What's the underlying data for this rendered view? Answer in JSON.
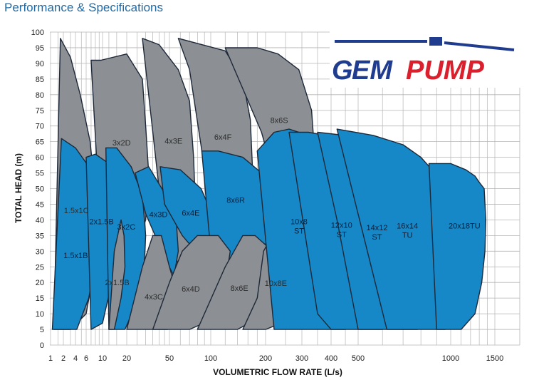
{
  "page": {
    "title": "Performance & Specifications"
  },
  "logo": {
    "prefix": "G",
    "brand_e": "EM",
    "brand_pump": "PUMP",
    "blue": "#1f3c8f",
    "red": "#d9202c"
  },
  "colors": {
    "gray_fill": "#8c8f93",
    "blue_fill": "#1688c7",
    "outline": "#1d2838",
    "grid": "#b5b5b5"
  },
  "chart_data": {
    "type": "area",
    "title": "",
    "xlabel": "VOLUMETRIC FLOW RATE (L/s)",
    "ylabel": "TOTAL HEAD (m)",
    "ylim": [
      0,
      100
    ],
    "y_ticks": [
      "0",
      "5",
      "10",
      "15",
      "20",
      "25",
      "30",
      "35",
      "40",
      "45",
      "50",
      "55",
      "60",
      "65",
      "70",
      "75",
      "80",
      "85",
      "90",
      "95",
      "100"
    ],
    "x_ticks": [
      "1",
      "2",
      "4",
      "6",
      "10",
      "20",
      "50",
      "100",
      "200",
      "300",
      "400",
      "500",
      "1000",
      "1500"
    ],
    "grid": true,
    "series": [
      {
        "name": "1.5x1C",
        "family": "gray",
        "q": [
          1.2,
          1.7,
          3,
          4.8,
          6.8,
          8.2,
          7.8,
          6,
          3,
          1.7
        ],
        "h": [
          5,
          98,
          92,
          80,
          65,
          45,
          25,
          10,
          5,
          5
        ]
      },
      {
        "name": "3x2D",
        "family": "gray",
        "q": [
          7,
          9.5,
          20,
          28,
          30,
          32,
          30,
          22,
          14,
          9,
          7
        ],
        "h": [
          91,
          91,
          93,
          85,
          70,
          55,
          40,
          28,
          22,
          45,
          91
        ]
      },
      {
        "name": "4x3E",
        "family": "gray",
        "q": [
          28,
          40,
          58,
          70,
          75,
          78,
          74,
          62,
          40,
          28
        ],
        "h": [
          98,
          96,
          88,
          78,
          60,
          40,
          25,
          20,
          50,
          98
        ]
      },
      {
        "name": "6x4F",
        "family": "gray",
        "q": [
          58,
          120,
          150,
          165,
          170,
          165,
          145,
          115,
          70,
          58
        ],
        "h": [
          98,
          94,
          85,
          72,
          55,
          35,
          20,
          20,
          88,
          98
        ]
      },
      {
        "name": "8x6S",
        "family": "gray",
        "q": [
          120,
          180,
          230,
          290,
          330,
          345,
          340,
          305,
          190,
          120
        ],
        "h": [
          95,
          95,
          93,
          88,
          75,
          55,
          35,
          20,
          68,
          95
        ]
      },
      {
        "name": "1.5x1B",
        "family": "blue",
        "q": [
          1.1,
          1.8,
          4,
          7.5,
          9,
          8.3,
          6.5,
          4.2,
          1.8,
          1.1
        ],
        "h": [
          5,
          66,
          63,
          55,
          40,
          28,
          15,
          5,
          5,
          5
        ]
      },
      {
        "name": "2x1.5B",
        "family": "blue",
        "q": [
          6,
          8,
          12,
          14.5,
          15,
          13,
          10,
          7,
          6
        ],
        "h": [
          60,
          61,
          58,
          50,
          35,
          20,
          7,
          5,
          60
        ]
      },
      {
        "name": "3x2C",
        "family": "blue",
        "q": [
          11,
          15,
          22,
          28,
          30,
          29,
          25,
          19,
          12,
          11
        ],
        "h": [
          63,
          63,
          57,
          48,
          35,
          25,
          14,
          5,
          5,
          63
        ]
      },
      {
        "name": "4x3D",
        "family": "blue",
        "q": [
          24,
          32,
          48,
          56,
          58,
          54,
          45,
          30,
          24
        ],
        "h": [
          55,
          57,
          47,
          40,
          30,
          22,
          28,
          42,
          55
        ]
      },
      {
        "name": "6x4E",
        "family": "blue",
        "q": [
          41,
          60,
          85,
          105,
          120,
          110,
          85,
          62,
          45,
          41
        ],
        "h": [
          57,
          56,
          50,
          40,
          30,
          24,
          28,
          35,
          45,
          57
        ]
      },
      {
        "name": "8x6R",
        "family": "blue",
        "q": [
          86,
          110,
          150,
          190,
          220,
          205,
          165,
          125,
          100,
          86
        ],
        "h": [
          62,
          62,
          60,
          55,
          45,
          33,
          28,
          26,
          30,
          62
        ]
      },
      {
        "name": "2x1.5B",
        "family": "gray",
        "q": [
          12,
          14,
          17,
          18.5,
          19,
          17,
          14,
          12
        ],
        "h": [
          5,
          30,
          40,
          35,
          25,
          15,
          5,
          5
        ]
      },
      {
        "name": "4x3C",
        "family": "gray",
        "q": [
          20,
          28,
          35,
          42,
          50,
          58,
          56,
          48,
          35,
          25,
          20
        ],
        "h": [
          5,
          25,
          35,
          35,
          25,
          15,
          10,
          5,
          5,
          5,
          5
        ]
      },
      {
        "name": "6x4D",
        "family": "gray",
        "q": [
          35,
          50,
          62,
          80,
          110,
          128,
          120,
          100,
          70,
          50,
          35
        ],
        "h": [
          5,
          20,
          30,
          35,
          35,
          30,
          20,
          8,
          5,
          5,
          5
        ]
      },
      {
        "name": "8x6E",
        "family": "gray",
        "q": [
          80,
          120,
          150,
          175,
          200,
          225,
          210,
          175,
          140,
          100,
          80
        ],
        "h": [
          5,
          25,
          35,
          35,
          32,
          28,
          18,
          8,
          5,
          5,
          5
        ]
      },
      {
        "name": "10x8E",
        "family": "gray",
        "q": [
          150,
          180,
          195,
          215,
          250,
          300,
          330,
          300,
          260,
          200,
          150
        ],
        "h": [
          5,
          15,
          30,
          35,
          37,
          33,
          30,
          15,
          8,
          5,
          5
        ]
      },
      {
        "name": "10x8 ST",
        "family": "blue",
        "q": [
          180,
          220,
          260,
          320,
          370,
          430,
          450,
          380,
          320,
          250,
          220,
          180
        ],
        "h": [
          62,
          68,
          69,
          67,
          60,
          45,
          5,
          5,
          5,
          5,
          5,
          62
        ]
      },
      {
        "name": "12x10 ST",
        "family": "blue",
        "q": [
          260,
          320,
          380,
          450,
          520,
          560,
          600,
          600,
          550,
          500,
          450,
          400,
          350,
          260
        ],
        "h": [
          68,
          68,
          67,
          64,
          58,
          50,
          40,
          5,
          5,
          5,
          5,
          5,
          10,
          68
        ]
      },
      {
        "name": "14x12 ST",
        "family": "blue",
        "q": [
          350,
          450,
          560,
          640,
          700,
          740,
          780,
          780,
          720,
          680,
          620,
          560,
          500,
          420,
          350
        ],
        "h": [
          68,
          67,
          64,
          61,
          56,
          49,
          40,
          5,
          5,
          5,
          5,
          5,
          5,
          40,
          68
        ]
      },
      {
        "name": "16x14 TU",
        "family": "blue",
        "q": [
          420,
          560,
          700,
          800,
          870,
          910,
          960,
          960,
          900,
          840,
          780,
          700,
          620,
          420
        ],
        "h": [
          69,
          67,
          64,
          60,
          56,
          52,
          48,
          5,
          5,
          5,
          5,
          5,
          5,
          69
        ]
      },
      {
        "name": "20x18TU",
        "family": "blue",
        "q": [
          850,
          1000,
          1150,
          1250,
          1300,
          1360,
          1380,
          1370,
          1330,
          1250,
          1100,
          900,
          850
        ],
        "h": [
          58,
          58,
          56,
          54,
          52,
          50,
          40,
          30,
          20,
          10,
          5,
          5,
          58
        ]
      }
    ]
  }
}
